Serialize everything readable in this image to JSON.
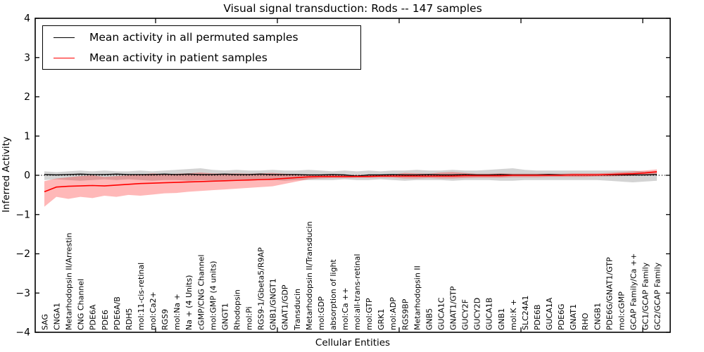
{
  "figure": {
    "title": "Visual signal transduction: Rods -- 147 samples",
    "xlabel": "Cellular Entities",
    "ylabel": "Inferred Activity"
  },
  "legend": [
    {
      "label": "Mean activity in all permuted samples",
      "color": "#000000"
    },
    {
      "label": "Mean activity in patient samples",
      "color": "#ff0000"
    }
  ],
  "chart_data": {
    "type": "line",
    "title": "Visual signal transduction: Rods -- 147 samples",
    "xlabel": "Cellular Entities",
    "ylabel": "Inferred Activity",
    "ylim": [
      -4,
      4
    ],
    "yticks": [
      4,
      3,
      2,
      1,
      0,
      -1,
      -2,
      -3,
      -4
    ],
    "grid": false,
    "legend_position": "upper left",
    "zero_line": {
      "style": "dotted",
      "color": "#000000"
    },
    "colors": {
      "permuted_line": "#000000",
      "patient_line": "#ff0000",
      "permuted_band": "rgba(128,128,128,0.35)",
      "patient_band": "rgba(255,0,0,0.28)"
    },
    "categories": [
      "SAG",
      "CNGA1",
      "Metarhodopsin II/Arrestin",
      "CNG Channel",
      "PDE6A",
      "PDE6",
      "PDE6A/B",
      "RDH5",
      "mol:11-cis-retinal",
      "mol:Ca2+",
      "RGS9",
      "mol:Na +",
      "Na + (4 Units)",
      "cGMP/CNG Channel",
      "mol:GMP (4 units)",
      "GNGT1",
      "Rhodopsin",
      "mol:Pi",
      "RGS9-1/Gbeta5/R9AP",
      "GNB1/GNGT1",
      "GNAT1/GDP",
      "Transducin",
      "Metarhodopsin II/Transducin",
      "mol:GDP",
      "absorption of light",
      "mol:Ca ++",
      "mol:all-trans-retinal",
      "mol:GTP",
      "GRK1",
      "mol:ADP",
      "RGS9BP",
      "Metarhodopsin II",
      "GNB5",
      "GUCA1C",
      "GNAT1/GTP",
      "GUCY2F",
      "GUCY2D",
      "GUCA1B",
      "GNB1",
      "mol:K +",
      "SLC24A1",
      "PDE6B",
      "GUCA1A",
      "PDE6G",
      "GNAT1",
      "RHO",
      "CNGB1",
      "PDE6G/GNAT1/GTP",
      "mol:cGMP",
      "GCAP Family/Ca ++",
      "GC1/GCAP Family",
      "GC2/GCAP Family"
    ],
    "series": [
      {
        "name": "Mean activity in all permuted samples",
        "values": [
          0.02,
          0.01,
          0.02,
          0.03,
          0.02,
          0.02,
          0.03,
          0.02,
          0.02,
          0.02,
          0.03,
          0.02,
          0.03,
          0.02,
          0.02,
          0.03,
          0.02,
          0.02,
          0.03,
          0.02,
          0.02,
          0.02,
          0.01,
          0.01,
          0.02,
          0.01,
          -0.02,
          0.01,
          0.01,
          0.02,
          0.01,
          0.01,
          0.02,
          0.01,
          0.01,
          0.02,
          0.01,
          0.01,
          0.02,
          0.01,
          0.01,
          0.01,
          0.02,
          0.01,
          0.01,
          0.01,
          0.01,
          0.01,
          0.01,
          0.01,
          0.01,
          0.02
        ],
        "band_upper": [
          0.1,
          0.08,
          0.1,
          0.12,
          0.1,
          0.12,
          0.1,
          0.1,
          0.12,
          0.1,
          0.12,
          0.14,
          0.16,
          0.18,
          0.14,
          0.12,
          0.14,
          0.12,
          0.12,
          0.14,
          0.12,
          0.12,
          0.14,
          0.12,
          0.1,
          0.12,
          0.1,
          0.12,
          0.1,
          0.12,
          0.12,
          0.14,
          0.12,
          0.12,
          0.14,
          0.12,
          0.12,
          0.14,
          0.16,
          0.18,
          0.14,
          0.12,
          0.12,
          0.12,
          0.12,
          0.12,
          0.12,
          0.12,
          0.12,
          0.12,
          0.1,
          0.1
        ],
        "band_lower": [
          -0.12,
          -0.1,
          -0.12,
          -0.14,
          -0.12,
          -0.1,
          -0.12,
          -0.1,
          -0.12,
          -0.14,
          -0.12,
          -0.12,
          -0.14,
          -0.12,
          -0.14,
          -0.12,
          -0.12,
          -0.14,
          -0.12,
          -0.12,
          -0.14,
          -0.12,
          -0.12,
          -0.12,
          -0.12,
          -0.1,
          -0.12,
          -0.12,
          -0.1,
          -0.12,
          -0.14,
          -0.12,
          -0.12,
          -0.12,
          -0.14,
          -0.12,
          -0.12,
          -0.12,
          -0.14,
          -0.14,
          -0.12,
          -0.12,
          -0.12,
          -0.12,
          -0.12,
          -0.12,
          -0.12,
          -0.14,
          -0.16,
          -0.18,
          -0.16,
          -0.14
        ]
      },
      {
        "name": "Mean activity in patient samples",
        "values": [
          -0.42,
          -0.3,
          -0.28,
          -0.27,
          -0.26,
          -0.27,
          -0.25,
          -0.23,
          -0.21,
          -0.2,
          -0.19,
          -0.18,
          -0.17,
          -0.16,
          -0.15,
          -0.14,
          -0.13,
          -0.12,
          -0.11,
          -0.1,
          -0.08,
          -0.06,
          -0.04,
          -0.03,
          -0.03,
          -0.03,
          -0.03,
          -0.03,
          -0.02,
          -0.02,
          -0.02,
          -0.02,
          -0.02,
          -0.02,
          -0.02,
          -0.01,
          -0.01,
          -0.01,
          -0.01,
          0.0,
          0.0,
          0.0,
          0.0,
          0.0,
          0.01,
          0.01,
          0.01,
          0.02,
          0.03,
          0.04,
          0.06,
          0.09
        ],
        "band_upper": [
          -0.15,
          -0.08,
          -0.05,
          -0.02,
          0.0,
          -0.04,
          -0.02,
          0.0,
          0.02,
          0.05,
          0.03,
          0.04,
          0.05,
          0.07,
          0.05,
          0.04,
          0.05,
          0.04,
          0.05,
          0.06,
          0.04,
          0.03,
          0.02,
          0.01,
          0.01,
          0.01,
          0.01,
          0.01,
          0.02,
          0.02,
          0.06,
          0.05,
          0.04,
          0.07,
          0.08,
          0.06,
          0.04,
          0.04,
          0.05,
          0.04,
          0.04,
          0.04,
          0.04,
          0.04,
          0.05,
          0.05,
          0.05,
          0.06,
          0.08,
          0.1,
          0.12,
          0.15
        ],
        "band_lower": [
          -0.8,
          -0.55,
          -0.6,
          -0.55,
          -0.58,
          -0.52,
          -0.55,
          -0.5,
          -0.52,
          -0.49,
          -0.46,
          -0.45,
          -0.42,
          -0.4,
          -0.38,
          -0.36,
          -0.34,
          -0.32,
          -0.3,
          -0.28,
          -0.22,
          -0.16,
          -0.1,
          -0.08,
          -0.07,
          -0.07,
          -0.06,
          -0.06,
          -0.06,
          -0.06,
          -0.08,
          -0.08,
          -0.07,
          -0.08,
          -0.08,
          -0.07,
          -0.06,
          -0.06,
          -0.06,
          -0.05,
          -0.05,
          -0.05,
          -0.04,
          -0.04,
          -0.04,
          -0.04,
          -0.03,
          -0.03,
          -0.02,
          -0.01,
          0.01,
          0.03
        ]
      }
    ]
  }
}
